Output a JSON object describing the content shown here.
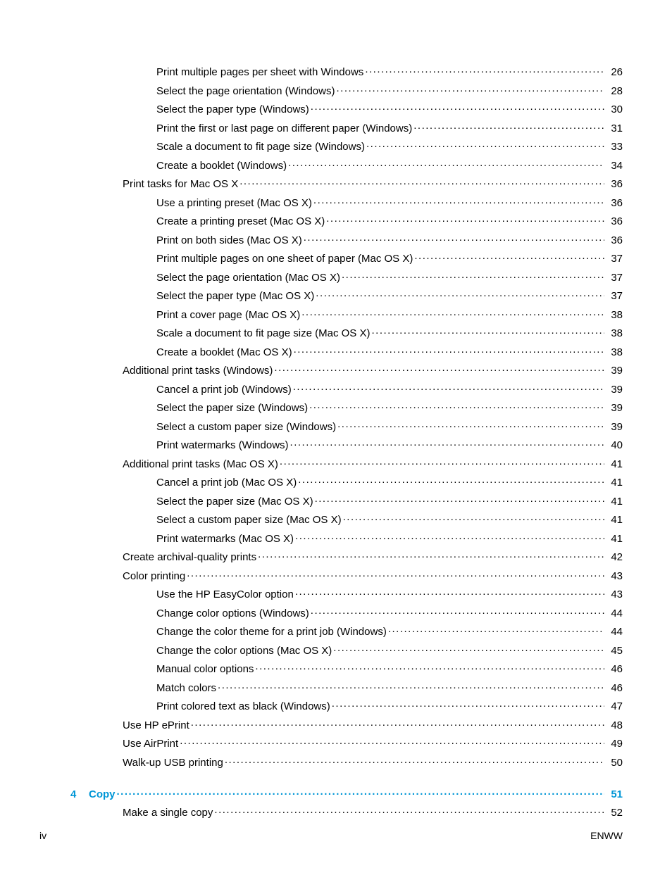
{
  "entries": [
    {
      "indent": 2,
      "label": "Print multiple pages per sheet with Windows",
      "page": "26"
    },
    {
      "indent": 2,
      "label": "Select the page orientation (Windows)",
      "page": "28"
    },
    {
      "indent": 2,
      "label": "Select the paper type (Windows)",
      "page": "30"
    },
    {
      "indent": 2,
      "label": "Print the first or last page on different paper (Windows)",
      "page": "31"
    },
    {
      "indent": 2,
      "label": "Scale a document to fit page size (Windows)",
      "page": "33"
    },
    {
      "indent": 2,
      "label": "Create a booklet (Windows)",
      "page": "34"
    },
    {
      "indent": 1,
      "label": "Print tasks for Mac OS X",
      "page": "36"
    },
    {
      "indent": 2,
      "label": "Use a printing preset (Mac OS X)",
      "page": "36"
    },
    {
      "indent": 2,
      "label": "Create a printing preset (Mac OS X)",
      "page": "36"
    },
    {
      "indent": 2,
      "label": "Print on both sides (Mac OS X)",
      "page": "36"
    },
    {
      "indent": 2,
      "label": "Print multiple pages on one sheet of paper (Mac OS X)",
      "page": "37"
    },
    {
      "indent": 2,
      "label": "Select the page orientation (Mac OS X)",
      "page": "37"
    },
    {
      "indent": 2,
      "label": "Select the paper type (Mac OS X)",
      "page": "37"
    },
    {
      "indent": 2,
      "label": "Print a cover page (Mac OS X)",
      "page": "38"
    },
    {
      "indent": 2,
      "label": "Scale a document to fit page size (Mac OS X)",
      "page": "38"
    },
    {
      "indent": 2,
      "label": "Create a booklet (Mac OS X)",
      "page": "38"
    },
    {
      "indent": 1,
      "label": "Additional print tasks (Windows)",
      "page": "39"
    },
    {
      "indent": 2,
      "label": "Cancel a print job (Windows)",
      "page": "39"
    },
    {
      "indent": 2,
      "label": "Select the paper size (Windows)",
      "page": "39"
    },
    {
      "indent": 2,
      "label": "Select a custom paper size (Windows)",
      "page": "39"
    },
    {
      "indent": 2,
      "label": "Print watermarks (Windows)",
      "page": "40"
    },
    {
      "indent": 1,
      "label": "Additional print tasks (Mac OS X)",
      "page": "41"
    },
    {
      "indent": 2,
      "label": "Cancel a print job (Mac OS X)",
      "page": "41"
    },
    {
      "indent": 2,
      "label": "Select the paper size (Mac OS X)",
      "page": "41"
    },
    {
      "indent": 2,
      "label": "Select a custom paper size (Mac OS X)",
      "page": "41"
    },
    {
      "indent": 2,
      "label": "Print watermarks (Mac OS X)",
      "page": "41"
    },
    {
      "indent": 1,
      "label": "Create archival-quality prints",
      "page": "42"
    },
    {
      "indent": 1,
      "label": "Color printing",
      "page": "43"
    },
    {
      "indent": 2,
      "label": "Use the HP EasyColor option",
      "page": "43"
    },
    {
      "indent": 2,
      "label": "Change color options (Windows)",
      "page": "44"
    },
    {
      "indent": 2,
      "label": "Change the color theme for a print job (Windows)",
      "page": "44"
    },
    {
      "indent": 2,
      "label": "Change the color options (Mac OS X)",
      "page": "45"
    },
    {
      "indent": 2,
      "label": "Manual color options",
      "page": "46"
    },
    {
      "indent": 2,
      "label": "Match colors",
      "page": "46"
    },
    {
      "indent": 2,
      "label": "Print colored text as black (Windows)",
      "page": "47"
    },
    {
      "indent": 1,
      "label": "Use HP ePrint",
      "page": "48"
    },
    {
      "indent": 1,
      "label": "Use AirPrint",
      "page": "49"
    },
    {
      "indent": 1,
      "label": "Walk-up USB printing",
      "page": "50"
    }
  ],
  "chapter": {
    "num": "4",
    "title": "Copy",
    "page": "51"
  },
  "chapter_entries": [
    {
      "indent": 1,
      "label": "Make a single copy",
      "page": "52"
    }
  ],
  "footer": {
    "left": "iv",
    "right": "ENWW"
  },
  "colors": {
    "chapter_color": "#0096d6",
    "text_color": "#000000",
    "background": "#ffffff"
  },
  "typography": {
    "body_fontsize": 15,
    "footer_fontsize": 14
  }
}
